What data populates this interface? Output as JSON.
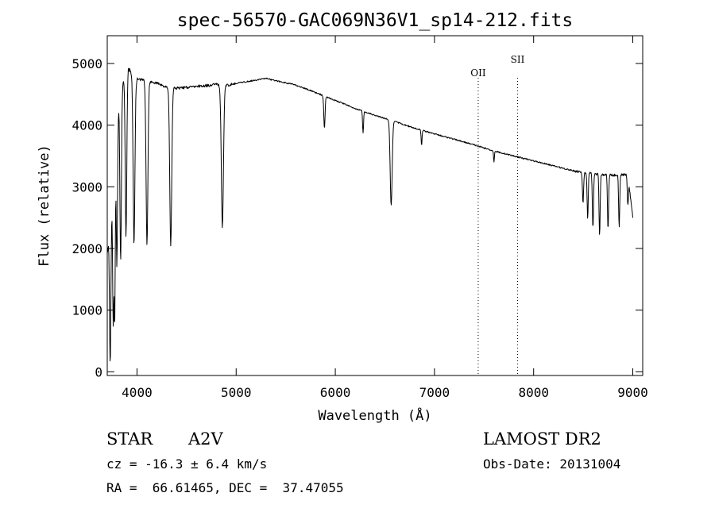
{
  "chart_data": {
    "type": "line",
    "title": "spec-56570-GAC069N36V1_sp14-212.fits",
    "xlabel": "Wavelength (Å)",
    "ylabel": "Flux (relative)",
    "xlim": [
      3700,
      9100
    ],
    "ylim": [
      -60,
      5450
    ],
    "xticks": [
      4000,
      5000,
      6000,
      7000,
      8000,
      9000
    ],
    "yticks": [
      0,
      1000,
      2000,
      3000,
      4000,
      5000
    ],
    "grid": false,
    "continuum": [
      [
        3700,
        1900
      ],
      [
        3760,
        3000
      ],
      [
        3800,
        4100
      ],
      [
        3860,
        4700
      ],
      [
        3900,
        4950
      ],
      [
        3950,
        4850
      ],
      [
        4000,
        4750
      ],
      [
        4100,
        4720
      ],
      [
        4200,
        4680
      ],
      [
        4300,
        4620
      ],
      [
        4400,
        4600
      ],
      [
        4500,
        4610
      ],
      [
        4600,
        4630
      ],
      [
        4700,
        4640
      ],
      [
        4800,
        4660
      ],
      [
        4900,
        4640
      ],
      [
        5000,
        4680
      ],
      [
        5200,
        4730
      ],
      [
        5300,
        4760
      ],
      [
        5400,
        4720
      ],
      [
        5600,
        4650
      ],
      [
        5800,
        4530
      ],
      [
        6000,
        4400
      ],
      [
        6200,
        4270
      ],
      [
        6400,
        4160
      ],
      [
        6600,
        4060
      ],
      [
        6800,
        3950
      ],
      [
        7000,
        3860
      ],
      [
        7200,
        3770
      ],
      [
        7400,
        3680
      ],
      [
        7600,
        3580
      ],
      [
        7800,
        3500
      ],
      [
        8000,
        3420
      ],
      [
        8200,
        3340
      ],
      [
        8400,
        3260
      ],
      [
        8600,
        3210
      ],
      [
        8800,
        3190
      ],
      [
        8950,
        3200
      ],
      [
        9000,
        2500
      ]
    ],
    "absorption_lines": [
      {
        "center": 3730,
        "depth": 2300,
        "width": 10
      },
      {
        "center": 3760,
        "depth": 2200,
        "width": 8
      },
      {
        "center": 3775,
        "depth": 2600,
        "width": 8
      },
      {
        "center": 3797,
        "depth": 2300,
        "width": 9
      },
      {
        "center": 3835,
        "depth": 2700,
        "width": 10
      },
      {
        "center": 3889,
        "depth": 2700,
        "width": 11
      },
      {
        "center": 3970,
        "depth": 2750,
        "width": 13
      },
      {
        "center": 4101,
        "depth": 2650,
        "width": 13
      },
      {
        "center": 4340,
        "depth": 2550,
        "width": 14
      },
      {
        "center": 4861,
        "depth": 2300,
        "width": 15
      },
      {
        "center": 5890,
        "depth": 520,
        "width": 9
      },
      {
        "center": 6280,
        "depth": 350,
        "width": 7
      },
      {
        "center": 6563,
        "depth": 1380,
        "width": 14
      },
      {
        "center": 6870,
        "depth": 250,
        "width": 6
      },
      {
        "center": 7600,
        "depth": 170,
        "width": 6
      },
      {
        "center": 8498,
        "depth": 500,
        "width": 8
      },
      {
        "center": 8545,
        "depth": 750,
        "width": 8
      },
      {
        "center": 8598,
        "depth": 900,
        "width": 8
      },
      {
        "center": 8665,
        "depth": 1000,
        "width": 8
      },
      {
        "center": 8750,
        "depth": 900,
        "width": 8
      },
      {
        "center": 8863,
        "depth": 850,
        "width": 8
      },
      {
        "center": 8950,
        "depth": 500,
        "width": 8
      }
    ],
    "markers": [
      {
        "label": "OII",
        "x": 7441
      },
      {
        "label": "SII",
        "x": 7838
      }
    ]
  },
  "footer": {
    "class_label": "STAR",
    "subclass": "A2V",
    "survey": "LAMOST DR2",
    "cz_text": "cz = -16.3 ± 6.4 km/s",
    "obs_date_text": "Obs-Date: 20131004",
    "radec_text": "RA =  66.61465, DEC =  37.47055"
  }
}
